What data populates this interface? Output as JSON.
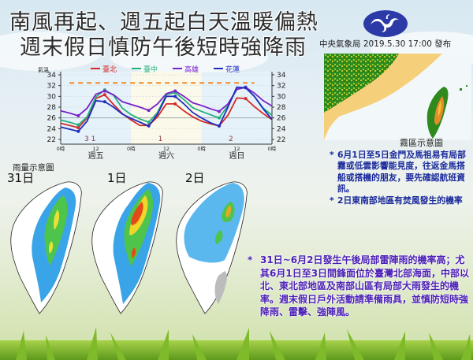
{
  "header": {
    "title_line1": "南風再起、週五起白天溫暖偏熱",
    "title_line2": "週末假日慎防午後短時強降雨",
    "issuer": "中央氣象局",
    "date": "2019.5.30",
    "time": "17:00",
    "issued_label": "發布",
    "issuer_line": "中央氣象局  2019.5.30   17:00 發布",
    "logo_icon": "cwb-logo-icon"
  },
  "chart_data": {
    "type": "line",
    "title": "",
    "ylabel": "氣溫",
    "xlabel": "",
    "ylim": [
      22,
      34
    ],
    "yticks": [
      22,
      24,
      26,
      28,
      30,
      32,
      34
    ],
    "x_tick_labels": [
      "0時",
      "12",
      "0時",
      "12",
      "0時",
      "12",
      "0時"
    ],
    "day_labels": [
      "週五",
      "週六",
      "週日"
    ],
    "date_labels": [
      "31",
      "1",
      "2"
    ],
    "x_hours": [
      0,
      3,
      6,
      9,
      12,
      15,
      18,
      21,
      24,
      27,
      30,
      33,
      36,
      39,
      42,
      45,
      48,
      51,
      54,
      57,
      60,
      63,
      66,
      69,
      72
    ],
    "reference_line": {
      "value": 32.5,
      "style": "dashed",
      "color": "#f08a24"
    },
    "series": [
      {
        "name": "臺北",
        "color": "#d12a2a",
        "values": [
          25.0,
          24.6,
          24.2,
          26.0,
          29.6,
          30.3,
          28.5,
          26.8,
          25.6,
          24.6,
          24.6,
          26.2,
          28.6,
          28.6,
          27.3,
          26.2,
          25.4,
          24.9,
          24.5,
          26.5,
          29.7,
          29.6,
          28.1,
          26.8,
          25.7
        ]
      },
      {
        "name": "臺中",
        "color": "#22b07a",
        "values": [
          25.6,
          25.2,
          24.7,
          26.2,
          29.9,
          31.2,
          30.2,
          27.8,
          26.6,
          25.8,
          25.2,
          27.0,
          30.3,
          30.7,
          29.4,
          27.9,
          27.2,
          26.6,
          26.0,
          28.3,
          31.3,
          31.7,
          30.0,
          27.8,
          26.5
        ]
      },
      {
        "name": "高雄",
        "color": "#7a22c8",
        "values": [
          27.3,
          26.9,
          26.4,
          27.8,
          30.4,
          31.0,
          30.3,
          29.0,
          28.5,
          28.0,
          27.4,
          28.6,
          30.5,
          31.0,
          30.0,
          28.8,
          28.3,
          27.7,
          27.2,
          28.6,
          31.3,
          31.7,
          30.6,
          29.2,
          28.2
        ]
      },
      {
        "name": "花蓮",
        "color": "#1f2dbf",
        "values": [
          24.3,
          23.9,
          23.5,
          25.4,
          29.2,
          29.0,
          28.0,
          26.7,
          25.9,
          25.2,
          24.5,
          26.7,
          30.0,
          30.0,
          28.6,
          27.0,
          26.0,
          25.1,
          24.5,
          28.0,
          31.7,
          31.6,
          30.0,
          27.7,
          25.7
        ]
      }
    ],
    "legend_position": "top",
    "grid": true
  },
  "fog": {
    "caption": "霧區示意圖",
    "notes": [
      "6月1日至5日金門及馬祖易有局部霧或低雲影響能見度，往返金馬搭船或搭機的朋友，要先確認航班資訊。",
      "2日東南部地區有焚風發生的機率"
    ]
  },
  "rain": {
    "title": "雨量示意圖",
    "days": [
      "31日",
      "1日",
      "2日"
    ]
  },
  "main_note": "31日~6月2日發生午後局部雷陣雨的機率高；尤其6月1日至3日間鋒面位於臺灣北部海面，中部以北、東北部地區及南部山區有局部大雨發生的機率。週末假日戶外活動請準備雨具，並慎防短時強降雨、雷擊、強陣風。"
}
